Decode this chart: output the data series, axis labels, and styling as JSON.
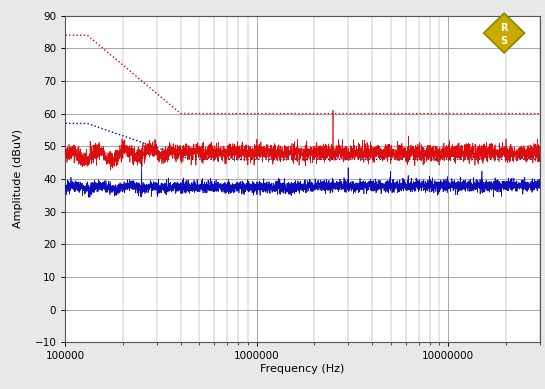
{
  "title": "",
  "xlabel": "Frequency (Hz)",
  "ylabel": "Amplitude (dBuV)",
  "xlim_log": [
    100000,
    30000000
  ],
  "ylim": [
    -10,
    90
  ],
  "yticks": [
    -10,
    0,
    10,
    20,
    30,
    40,
    50,
    60,
    70,
    80,
    90
  ],
  "bg_color": "#e8e8e8",
  "plot_bg_color": "#ffffff",
  "grid_color": "#999999",
  "red_color": "#dd0000",
  "blue_color": "#0000bb",
  "red_limit_start": 84,
  "red_limit_break1_freq": 150000,
  "red_limit_break2_freq": 400000,
  "red_limit_mid": 60,
  "red_limit_end": 60,
  "blue_limit_start": 57,
  "blue_limit_break_freq": 500000,
  "blue_limit_end": 46,
  "red_signal_base": 48,
  "blue_signal_base": 37.5
}
